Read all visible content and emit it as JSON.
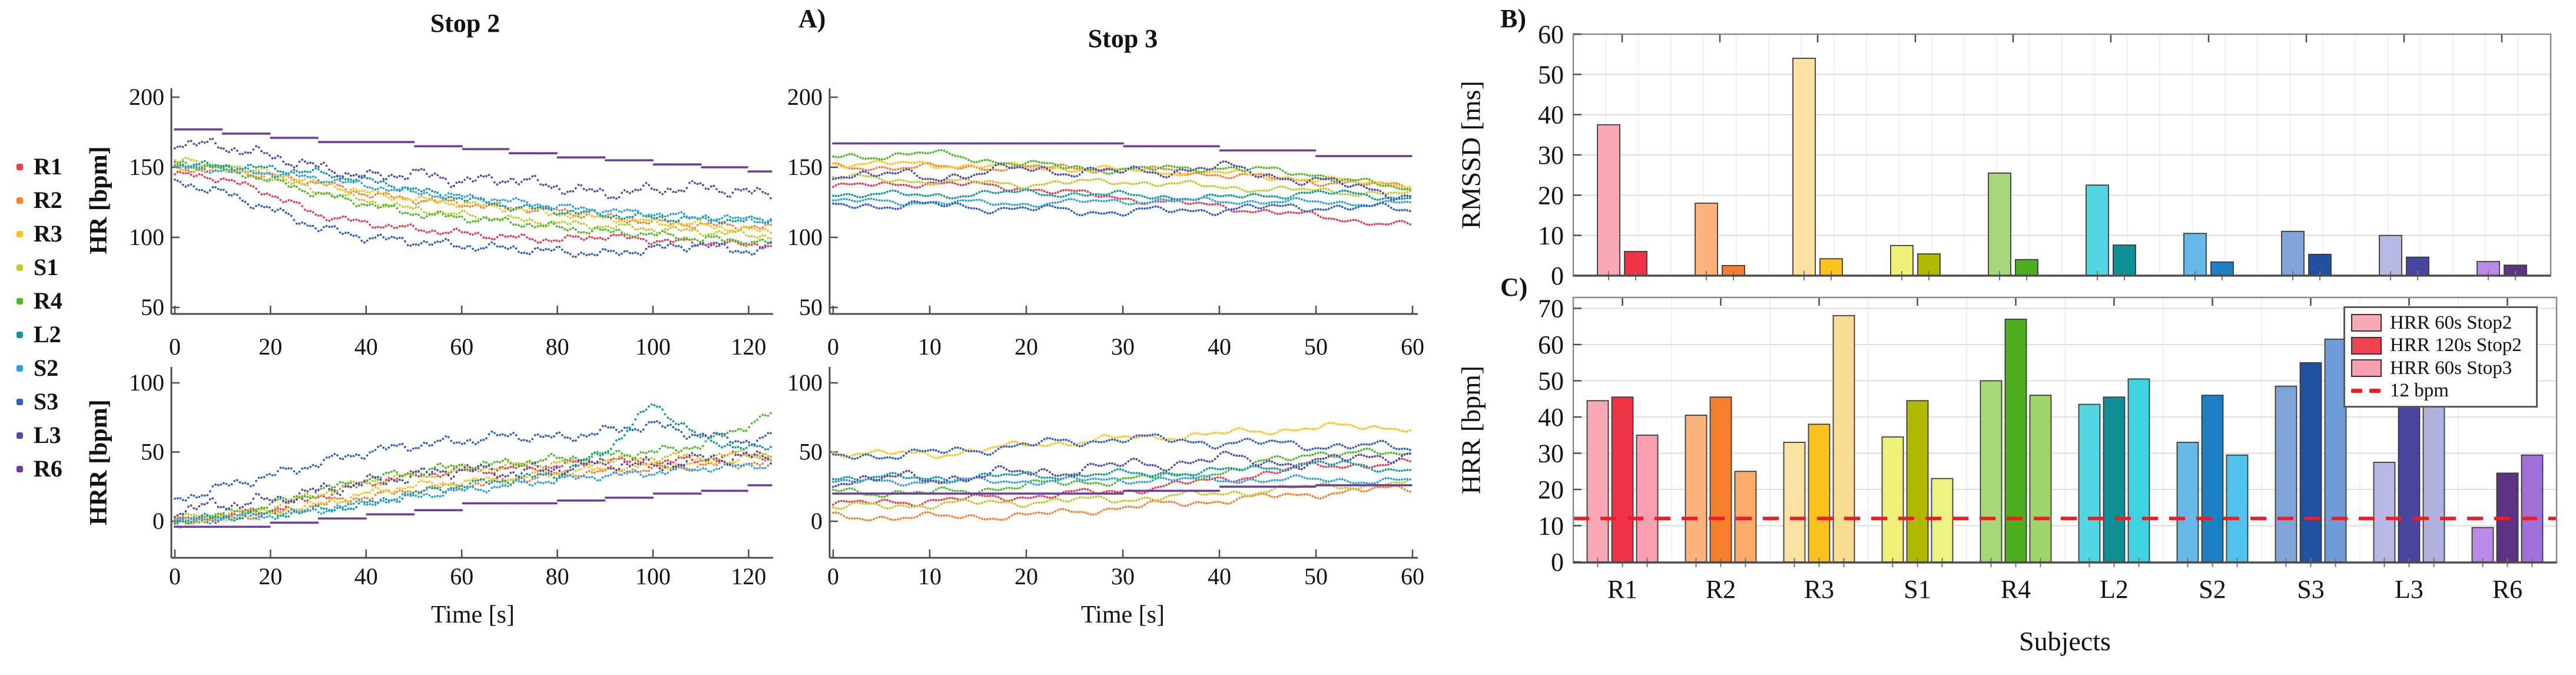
{
  "ui": {
    "panel_labels": {
      "a": "A)",
      "b": "B)",
      "c": "C)"
    },
    "titles": {
      "stop2": "Stop 2",
      "stop3": "Stop 3"
    },
    "axis": {
      "hr": "HR [bpm]",
      "hrr": "HRR [bpm]",
      "time": "Time [s]",
      "rmssd": "RMSSD [ms]",
      "hrr_bars": "HRR [bpm]",
      "subjects": "Subjects"
    },
    "subject_legend": [
      {
        "label": "R1",
        "color": "#ee3a4e"
      },
      {
        "label": "R2",
        "color": "#f58231"
      },
      {
        "label": "R3",
        "color": "#fcc21d"
      },
      {
        "label": "S1",
        "color": "#bfc82e"
      },
      {
        "label": "R4",
        "color": "#4cba27"
      },
      {
        "label": "L2",
        "color": "#12999b"
      },
      {
        "label": "S2",
        "color": "#2e9fdf"
      },
      {
        "label": "S3",
        "color": "#2f5ec4"
      },
      {
        "label": "L3",
        "color": "#5149ae"
      },
      {
        "label": "R6",
        "color": "#6b3f99"
      }
    ],
    "panelc_legend": {
      "items": [
        {
          "label": "HRR 60s Stop2",
          "swatch": "#f9a9b5"
        },
        {
          "label": "HRR 120s Stop2",
          "swatch": "#f2414f"
        },
        {
          "label": "HRR 60s Stop3",
          "swatch": "#f8a0b0"
        }
      ],
      "refline_label": "12 bpm",
      "refline_color": "#ee1c24"
    }
  },
  "chart_data": [
    {
      "id": "hr_stop2",
      "type": "scatter",
      "title": "Stop 2",
      "xlabel": "",
      "ylabel": "HR [bpm]",
      "xlim": [
        0,
        125
      ],
      "ylim": [
        45,
        205
      ],
      "xticks": [
        0,
        20,
        40,
        60,
        80,
        100,
        120
      ],
      "yticks": [
        50,
        100,
        150,
        200
      ],
      "grid": false,
      "marker": "dotted-line",
      "x": [
        0,
        10,
        20,
        30,
        40,
        50,
        60,
        70,
        80,
        90,
        100,
        110,
        120,
        125
      ],
      "series": [
        {
          "name": "R1",
          "color": "#ee3a4e",
          "values": [
            145,
            142,
            131,
            116,
            110,
            106,
            103,
            100,
            98,
            101,
            98,
            96,
            95,
            95
          ]
        },
        {
          "name": "R2",
          "color": "#f58231",
          "values": [
            149,
            148,
            144,
            139,
            131,
            127,
            124,
            121,
            119,
            114,
            111,
            109,
            108,
            107
          ]
        },
        {
          "name": "R3",
          "color": "#fcc21d",
          "values": [
            151,
            149,
            146,
            139,
            132,
            127,
            124,
            121,
            117,
            114,
            111,
            109,
            105,
            104
          ]
        },
        {
          "name": "S1",
          "color": "#bfc82e",
          "values": [
            155,
            151,
            143,
            133,
            126,
            120,
            116,
            113,
            110,
            108,
            106,
            104,
            102,
            101
          ]
        },
        {
          "name": "R4",
          "color": "#4cba27",
          "values": [
            153,
            149,
            141,
            131,
            124,
            117,
            114,
            111,
            107,
            104,
            102,
            99,
            97,
            96
          ]
        },
        {
          "name": "L2",
          "color": "#12999b",
          "values": [
            152,
            151,
            149,
            146,
            141,
            134,
            128,
            122,
            119,
            116,
            114,
            113,
            112,
            112
          ]
        },
        {
          "name": "S2",
          "color": "#2e9fdf",
          "values": [
            150,
            148,
            146,
            142,
            137,
            132,
            129,
            126,
            122,
            119,
            117,
            114,
            113,
            112
          ]
        },
        {
          "name": "S3",
          "color": "#2f5ec4",
          "values": [
            140,
            132,
            120,
            107,
            100,
            97,
            94,
            92,
            90,
            88,
            92,
            95,
            90,
            93
          ]
        },
        {
          "name": "L3",
          "color": "#5149ae",
          "values": [
            168,
            165,
            158,
            150,
            143,
            146,
            140,
            142,
            136,
            131,
            134,
            136,
            132,
            130
          ]
        },
        {
          "name": "R6",
          "color": "#6b3f99",
          "interp": "step",
          "values": [
            177,
            174,
            171,
            168,
            168,
            165,
            163,
            160,
            157,
            155,
            152,
            150,
            147,
            147
          ]
        }
      ]
    },
    {
      "id": "hr_stop3",
      "type": "scatter",
      "title": "Stop 3",
      "xlabel": "",
      "ylabel": "",
      "xlim": [
        0,
        60
      ],
      "ylim": [
        45,
        205
      ],
      "xticks": [
        0,
        10,
        20,
        30,
        40,
        50,
        60
      ],
      "yticks": [
        50,
        100,
        150,
        200
      ],
      "grid": false,
      "marker": "dotted-line",
      "x": [
        0,
        10,
        20,
        30,
        40,
        50,
        60
      ],
      "series": [
        {
          "name": "R1",
          "color": "#ee3a4e",
          "values": [
            136,
            139,
            135,
            128,
            122,
            115,
            108
          ]
        },
        {
          "name": "R2",
          "color": "#f58231",
          "values": [
            150,
            150,
            150,
            149,
            145,
            140,
            136
          ]
        },
        {
          "name": "R3",
          "color": "#fcc21d",
          "values": [
            153,
            152,
            150,
            148,
            146,
            141,
            138
          ]
        },
        {
          "name": "S1",
          "color": "#bfc82e",
          "values": [
            143,
            140,
            138,
            140,
            136,
            133,
            131
          ]
        },
        {
          "name": "R4",
          "color": "#4cba27",
          "values": [
            157,
            160,
            152,
            148,
            150,
            145,
            133
          ]
        },
        {
          "name": "L2",
          "color": "#12999b",
          "values": [
            131,
            130,
            132,
            130,
            128,
            132,
            128
          ]
        },
        {
          "name": "S2",
          "color": "#2e9fdf",
          "values": [
            126,
            125,
            124,
            126,
            126,
            125,
            124
          ]
        },
        {
          "name": "S3",
          "color": "#2f5ec4",
          "values": [
            123,
            123,
            120,
            118,
            120,
            122,
            120
          ]
        },
        {
          "name": "L3",
          "color": "#5149ae",
          "values": [
            146,
            143,
            149,
            146,
            150,
            140,
            130
          ]
        },
        {
          "name": "R6",
          "color": "#6b3f99",
          "interp": "step",
          "values": [
            167,
            167,
            167,
            165,
            162,
            158,
            155
          ]
        }
      ]
    },
    {
      "id": "hrr_stop2",
      "type": "scatter",
      "title": "",
      "xlabel": "Time [s]",
      "ylabel": "HRR [bpm]",
      "xlim": [
        0,
        125
      ],
      "ylim": [
        -26,
        110
      ],
      "xticks": [
        0,
        20,
        40,
        60,
        80,
        100,
        120
      ],
      "yticks": [
        0,
        50,
        100
      ],
      "grid": false,
      "marker": "dotted-line",
      "x": [
        0,
        10,
        20,
        30,
        40,
        50,
        60,
        70,
        80,
        90,
        100,
        110,
        120,
        125
      ],
      "series": [
        {
          "name": "R1",
          "color": "#ee3a4e",
          "values": [
            0,
            3,
            8,
            18,
            28,
            33,
            36,
            38,
            40,
            44,
            42,
            45,
            48,
            48
          ]
        },
        {
          "name": "R2",
          "color": "#f58231",
          "values": [
            0,
            2,
            5,
            12,
            18,
            22,
            26,
            30,
            34,
            36,
            38,
            40,
            42,
            42
          ]
        },
        {
          "name": "R3",
          "color": "#fcc21d",
          "values": [
            -2,
            3,
            6,
            12,
            20,
            26,
            28,
            31,
            35,
            38,
            40,
            42,
            46,
            47
          ]
        },
        {
          "name": "S1",
          "color": "#bfc82e",
          "values": [
            2,
            4,
            10,
            20,
            28,
            33,
            37,
            40,
            42,
            44,
            46,
            47,
            48,
            49
          ]
        },
        {
          "name": "R4",
          "color": "#4cba27",
          "values": [
            0,
            5,
            12,
            22,
            30,
            36,
            40,
            42,
            45,
            48,
            50,
            55,
            70,
            78
          ]
        },
        {
          "name": "L2",
          "color": "#12999b",
          "values": [
            0,
            3,
            5,
            8,
            12,
            20,
            26,
            30,
            34,
            50,
            85,
            60,
            52,
            54
          ]
        },
        {
          "name": "S2",
          "color": "#2e9fdf",
          "values": [
            0,
            2,
            4,
            8,
            13,
            18,
            22,
            26,
            30,
            33,
            35,
            38,
            40,
            41
          ]
        },
        {
          "name": "S3",
          "color": "#2f5ec4",
          "values": [
            15,
            25,
            33,
            42,
            50,
            55,
            58,
            62,
            60,
            65,
            70,
            62,
            58,
            60
          ]
        },
        {
          "name": "L3",
          "color": "#5149ae",
          "values": [
            8,
            12,
            15,
            22,
            28,
            33,
            38,
            35,
            38,
            42,
            40,
            45,
            47,
            44
          ]
        },
        {
          "name": "R6",
          "color": "#6b3f99",
          "interp": "step",
          "values": [
            -4,
            -4,
            -1,
            2,
            5,
            8,
            13,
            13,
            15,
            17,
            20,
            22,
            26,
            26
          ]
        }
      ]
    },
    {
      "id": "hrr_stop3",
      "type": "scatter",
      "title": "",
      "xlabel": "Time [s]",
      "ylabel": "",
      "xlim": [
        0,
        60
      ],
      "ylim": [
        -26,
        110
      ],
      "xticks": [
        0,
        10,
        20,
        30,
        40,
        50,
        60
      ],
      "yticks": [
        0,
        50,
        100
      ],
      "grid": false,
      "marker": "dotted-line",
      "x": [
        0,
        10,
        20,
        30,
        40,
        50,
        60
      ],
      "series": [
        {
          "name": "R1",
          "color": "#ee3a4e",
          "values": [
            12,
            15,
            18,
            22,
            30,
            40,
            42
          ]
        },
        {
          "name": "R2",
          "color": "#f58231",
          "values": [
            3,
            3,
            4,
            10,
            15,
            20,
            24
          ]
        },
        {
          "name": "R3",
          "color": "#fcc21d",
          "values": [
            50,
            48,
            55,
            60,
            63,
            68,
            68
          ]
        },
        {
          "name": "S1",
          "color": "#bfc82e",
          "values": [
            10,
            12,
            14,
            16,
            20,
            25,
            28
          ]
        },
        {
          "name": "R4",
          "color": "#4cba27",
          "values": [
            22,
            20,
            26,
            30,
            35,
            50,
            48
          ]
        },
        {
          "name": "L2",
          "color": "#12999b",
          "values": [
            32,
            31,
            33,
            34,
            36,
            42,
            37
          ]
        },
        {
          "name": "S2",
          "color": "#2e9fdf",
          "values": [
            28,
            29,
            29,
            30,
            30,
            30,
            29
          ]
        },
        {
          "name": "S3",
          "color": "#2f5ec4",
          "values": [
            47,
            49,
            55,
            60,
            57,
            55,
            53
          ]
        },
        {
          "name": "L3",
          "color": "#5149ae",
          "values": [
            30,
            31,
            35,
            40,
            45,
            42,
            50
          ]
        },
        {
          "name": "R6",
          "color": "#6b3f99",
          "interp": "step",
          "values": [
            20,
            20,
            20,
            22,
            25,
            26,
            27
          ]
        }
      ]
    },
    {
      "id": "rmssd_bars",
      "type": "bar",
      "title": "",
      "xlabel": "",
      "ylabel": "RMSSD [ms]",
      "ylim": [
        0,
        60
      ],
      "yticks": [
        0,
        10,
        20,
        30,
        40,
        50,
        60
      ],
      "grid": true,
      "categories": [
        "R1",
        "R2",
        "R3",
        "S1",
        "R4",
        "L2",
        "S2",
        "S3",
        "L3",
        "R6"
      ],
      "series": [
        {
          "name": "series_light",
          "values": [
            37.5,
            18,
            54,
            7.5,
            25.5,
            22.5,
            10.5,
            11,
            10,
            3.5
          ],
          "colors": [
            "#f9a9b5",
            "#fbb379",
            "#fbe2a2",
            "#eef077",
            "#a6d879",
            "#52d7e2",
            "#66b8e7",
            "#7ea4d8",
            "#b6b9e3",
            "#b98ae6"
          ]
        },
        {
          "name": "series_dark",
          "values": [
            6,
            2.5,
            4.2,
            5.4,
            4,
            7.6,
            3.4,
            5.3,
            4.6,
            2.6
          ],
          "colors": [
            "#ee3347",
            "#f57f2c",
            "#fcc21d",
            "#afb900",
            "#4cae1d",
            "#0e8f94",
            "#1b7fc4",
            "#20509f",
            "#47459e",
            "#5c3382"
          ]
        }
      ]
    },
    {
      "id": "hrr_bar_chart",
      "type": "bar",
      "title": "",
      "xlabel": "Subjects",
      "ylabel": "HRR [bpm]",
      "ylim": [
        0,
        70
      ],
      "yticks": [
        0,
        10,
        20,
        30,
        40,
        50,
        60,
        70
      ],
      "grid": true,
      "refline": {
        "value": 12,
        "label": "12 bpm",
        "color": "#ee1c24",
        "style": "dashed"
      },
      "legend_position": "top-right",
      "categories": [
        "R1",
        "R2",
        "R3",
        "S1",
        "R4",
        "L2",
        "S2",
        "S3",
        "L3",
        "R6"
      ],
      "series": [
        {
          "name": "HRR 60s Stop2",
          "values": [
            44.5,
            40.5,
            33,
            34.5,
            50,
            43.5,
            33,
            48.5,
            27.5,
            9.5
          ],
          "colors": [
            "#f9a9b5",
            "#fbb379",
            "#fbe2a2",
            "#eef077",
            "#a6d879",
            "#52d7e2",
            "#66b8e7",
            "#7ea4d8",
            "#b6b9e3",
            "#b98ae6"
          ]
        },
        {
          "name": "HRR 120s Stop2",
          "values": [
            45.5,
            45.5,
            38,
            44.5,
            67,
            45.5,
            46,
            55,
            43,
            24.5
          ],
          "colors": [
            "#ee3347",
            "#f57f2c",
            "#fcc21d",
            "#afb900",
            "#4cae1d",
            "#0e8f94",
            "#1b7fc4",
            "#20509f",
            "#47459e",
            "#5c3382"
          ]
        },
        {
          "name": "HRR 60s Stop3",
          "values": [
            35,
            25,
            68,
            23,
            46,
            50.5,
            29.5,
            61.5,
            43,
            29.5
          ],
          "colors": [
            "#f8a0b0",
            "#fbab6c",
            "#f9dd92",
            "#eef283",
            "#9ed46b",
            "#3fd3e0",
            "#4fc3eb",
            "#6f9bd9",
            "#b1b1df",
            "#a06fd8"
          ]
        }
      ]
    }
  ]
}
